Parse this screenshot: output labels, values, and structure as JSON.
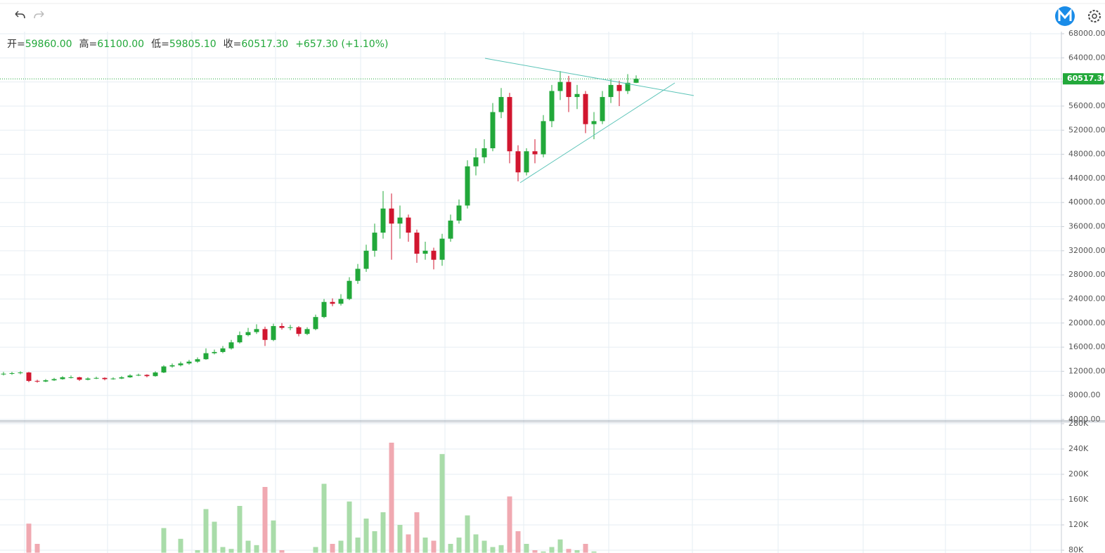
{
  "chart_data": {
    "type": "candlestick",
    "ohlc_legend": [
      {
        "label": "开=",
        "value": "59860.00"
      },
      {
        "label": "高=",
        "value": "61100.00"
      },
      {
        "label": "低=",
        "value": "59805.10"
      },
      {
        "label": "收=",
        "value": "60517.30"
      }
    ],
    "change_label": "+657.30 (+1.10%)",
    "last_price": {
      "value": 60517.3,
      "label": "60517.30"
    },
    "up_color": "#22a83a",
    "down_color": "#d1162f",
    "up_volume_color": "#a9dca9",
    "down_volume_color": "#f0a9b1",
    "grid": true,
    "open": [
      11500,
      11600,
      11700,
      11800,
      10400,
      10300,
      10500,
      10700,
      11000,
      11000,
      10600,
      10800,
      10900,
      10700,
      10800,
      11000,
      11300,
      11400,
      11200,
      11800,
      12800,
      13000,
      13300,
      13600,
      14000,
      15000,
      15200,
      15800,
      16800,
      18000,
      18500,
      19000,
      17200,
      19500,
      19200,
      19300,
      18200,
      19000,
      21000,
      23500,
      23200,
      24000,
      27000,
      29000,
      32000,
      35000,
      39000,
      36500,
      37500,
      35000,
      31500,
      32000,
      30500,
      34000,
      37000,
      39500,
      46000,
      47500,
      49000,
      55000,
      57500,
      48500,
      45000,
      48500,
      48000,
      53500,
      58500,
      60000,
      57500,
      58000,
      53000,
      53500,
      57500,
      59500,
      58500,
      59860
    ],
    "high": [
      11900,
      11900,
      12000,
      11900,
      10600,
      10700,
      10900,
      11200,
      11300,
      11100,
      11000,
      11100,
      11000,
      11000,
      11200,
      11500,
      11600,
      11500,
      12000,
      13000,
      13300,
      13600,
      13900,
      14300,
      15800,
      15600,
      16200,
      17200,
      18600,
      19200,
      19800,
      19400,
      19900,
      20000,
      19700,
      19500,
      19300,
      21400,
      24000,
      24100,
      24800,
      27600,
      29800,
      33000,
      36500,
      41900,
      41500,
      39500,
      38000,
      35500,
      33500,
      32500,
      34800,
      38000,
      40500,
      47000,
      49000,
      50500,
      56500,
      59000,
      58200,
      49500,
      49000,
      50500,
      54500,
      59500,
      61800,
      61000,
      59500,
      58500,
      55000,
      58500,
      60500,
      60200,
      61300,
      61100
    ],
    "low": [
      11300,
      11400,
      11500,
      10200,
      10100,
      10200,
      10400,
      10600,
      10800,
      10400,
      10500,
      10700,
      10500,
      10600,
      10700,
      10900,
      11200,
      11000,
      11100,
      11700,
      12600,
      12800,
      13100,
      13400,
      13900,
      14800,
      15000,
      15600,
      16600,
      17800,
      18200,
      16200,
      17000,
      18900,
      18800,
      17800,
      18000,
      18800,
      20800,
      22800,
      22900,
      23800,
      26500,
      28500,
      31000,
      34000,
      30500,
      34000,
      33500,
      30000,
      30500,
      28900,
      29500,
      33500,
      36500,
      39000,
      44500,
      46500,
      48500,
      54000,
      46500,
      43500,
      44500,
      46500,
      47500,
      52500,
      57000,
      55000,
      55500,
      51500,
      50500,
      53000,
      56500,
      56000,
      58000,
      59805.1
    ],
    "close": [
      11600,
      11700,
      11800,
      10400,
      10300,
      10500,
      10700,
      11000,
      11000,
      10600,
      10800,
      10900,
      10700,
      10800,
      11000,
      11300,
      11400,
      11200,
      11800,
      12800,
      13000,
      13300,
      13600,
      14000,
      15000,
      15200,
      15800,
      16800,
      18000,
      18500,
      19000,
      17200,
      19500,
      19200,
      19300,
      18200,
      19000,
      21000,
      23500,
      23200,
      24000,
      27000,
      29000,
      32000,
      35000,
      39000,
      36500,
      37500,
      35000,
      31500,
      32000,
      30500,
      34000,
      37000,
      39500,
      46000,
      47500,
      49000,
      55000,
      57500,
      48500,
      45000,
      48500,
      48000,
      53500,
      58500,
      60000,
      57500,
      58000,
      53000,
      53500,
      57500,
      59500,
      58500,
      59860,
      60517.3
    ],
    "volume": [
      70000,
      72000,
      75000,
      122000,
      90000,
      60000,
      55000,
      58000,
      62000,
      50000,
      48000,
      52000,
      55000,
      50000,
      53000,
      60000,
      58000,
      62000,
      66000,
      115000,
      70000,
      98000,
      75000,
      80000,
      145000,
      125000,
      85000,
      82000,
      150000,
      95000,
      88000,
      180000,
      127000,
      80000,
      72000,
      70000,
      75000,
      85000,
      185000,
      90000,
      95000,
      157000,
      100000,
      130000,
      110000,
      140000,
      250000,
      120000,
      105000,
      140000,
      100000,
      95000,
      232000,
      90000,
      100000,
      135000,
      105000,
      95000,
      85000,
      88000,
      165000,
      110000,
      90000,
      80000,
      78000,
      85000,
      97000,
      82000,
      80000,
      90000,
      78000,
      70000,
      65000,
      68000,
      72000,
      70000
    ],
    "ylim": [
      4000,
      68000
    ],
    "yticks": [
      {
        "value": 4000,
        "label": "4000.00"
      },
      {
        "value": 8000,
        "label": "8000.00"
      },
      {
        "value": 12000,
        "label": "12000.00"
      },
      {
        "value": 16000,
        "label": "16000.00"
      },
      {
        "value": 20000,
        "label": "20000.00"
      },
      {
        "value": 24000,
        "label": "24000.00"
      },
      {
        "value": 28000,
        "label": "28000.00"
      },
      {
        "value": 32000,
        "label": "32000.00"
      },
      {
        "value": 36000,
        "label": "36000.00"
      },
      {
        "value": 40000,
        "label": "40000.00"
      },
      {
        "value": 44000,
        "label": "44000.00"
      },
      {
        "value": 48000,
        "label": "48000.00"
      },
      {
        "value": 52000,
        "label": "52000.00"
      },
      {
        "value": 56000,
        "label": "56000.00"
      },
      {
        "value": 60000,
        "label": "60000.00"
      },
      {
        "value": 64000,
        "label": "64000.00"
      },
      {
        "value": 68000,
        "label": "68000.00"
      }
    ],
    "y2lim": [
      76000,
      282000
    ],
    "y2ticks": [
      {
        "value": 80000,
        "label": "80K"
      },
      {
        "value": 120000,
        "label": "120K"
      },
      {
        "value": 160000,
        "label": "160K"
      },
      {
        "value": 200000,
        "label": "200K"
      },
      {
        "value": 240000,
        "label": "240K"
      },
      {
        "value": 280000,
        "label": "280K"
      }
    ]
  }
}
